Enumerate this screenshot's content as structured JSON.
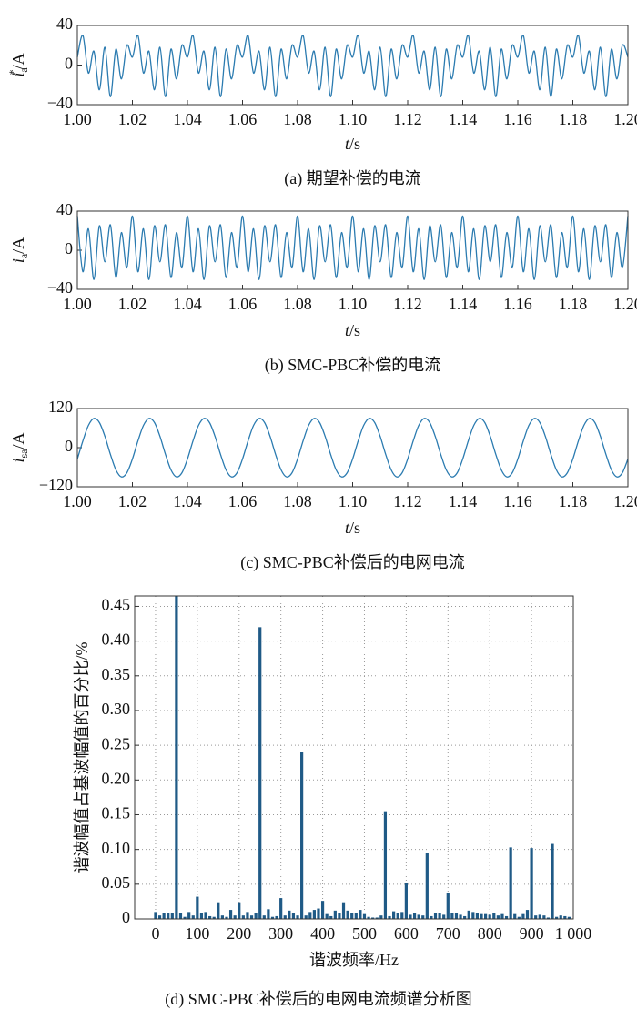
{
  "chart_data": [
    {
      "type": "line",
      "caption": "(a) 期望补偿的电流",
      "ylabel": {
        "symbol": "i",
        "sub": "a",
        "sup": "*",
        "unit": "/A"
      },
      "xlabel": {
        "symbol": "t",
        "unit": "/s"
      },
      "color": "#2b7bb0",
      "xlim": [
        1,
        1.2
      ],
      "ylim": [
        -40,
        40
      ],
      "xticks": [
        {
          "value": 1,
          "label": "1.00"
        },
        1.02,
        1.04,
        1.06,
        1.08,
        {
          "value": 1.1,
          "label": "1.10"
        },
        1.12,
        1.14,
        1.16,
        1.18,
        {
          "value": 1.2,
          "label": "1.20"
        }
      ],
      "yticks": [
        {
          "value": -40,
          "label": "−40"
        },
        0,
        40
      ],
      "x": [
        1,
        1.002,
        1.004,
        1.006,
        1.008,
        1.01,
        1.012,
        1.014,
        1.016,
        1.018,
        1.02,
        1.022,
        1.024,
        1.026,
        1.028,
        1.03,
        1.032,
        1.034,
        1.036,
        1.038,
        1.04,
        1.042,
        1.044,
        1.046,
        1.048,
        1.05,
        1.052,
        1.054,
        1.056,
        1.058,
        1.06,
        1.062,
        1.064,
        1.066,
        1.068,
        1.07,
        1.072,
        1.074,
        1.076,
        1.078,
        1.08,
        1.082,
        1.084,
        1.086,
        1.088,
        1.09,
        1.092,
        1.094,
        1.096,
        1.098,
        1.1,
        1.102,
        1.104,
        1.106,
        1.108,
        1.11,
        1.112,
        1.114,
        1.116,
        1.118,
        1.12,
        1.122,
        1.124,
        1.126,
        1.128,
        1.13,
        1.132,
        1.134,
        1.136,
        1.138,
        1.14,
        1.142,
        1.144,
        1.146,
        1.148,
        1.15,
        1.152,
        1.154,
        1.156,
        1.158,
        1.16,
        1.162,
        1.164,
        1.166,
        1.168,
        1.17,
        1.172,
        1.174,
        1.176,
        1.178,
        1.18,
        1.182,
        1.184,
        1.186,
        1.188,
        1.19,
        1.192,
        1.194,
        1.196,
        1.198,
        1.2
      ],
      "values": [
        8,
        30,
        -8,
        14,
        -25,
        18,
        -32,
        16,
        -14,
        20,
        8,
        30,
        -8,
        14,
        -25,
        18,
        -32,
        16,
        -14,
        20,
        8,
        30,
        -8,
        14,
        -25,
        18,
        -32,
        16,
        -14,
        20,
        8,
        30,
        -8,
        14,
        -25,
        18,
        -32,
        16,
        -14,
        20,
        8,
        30,
        -8,
        14,
        -25,
        18,
        -32,
        16,
        -14,
        20,
        8,
        30,
        -8,
        14,
        -25,
        18,
        -32,
        16,
        -14,
        20,
        8,
        30,
        -8,
        14,
        -25,
        18,
        -32,
        16,
        -14,
        20,
        8,
        30,
        -8,
        14,
        -25,
        18,
        -32,
        16,
        -14,
        20,
        8,
        30,
        -8,
        14,
        -25,
        18,
        -32,
        16,
        -14,
        20,
        8,
        30,
        -8,
        14,
        -25,
        18,
        -32,
        16,
        -14,
        20,
        8
      ]
    },
    {
      "type": "line",
      "caption": "(b) SMC-PBC补偿的电流",
      "ylabel": {
        "symbol": "i",
        "sub": "a",
        "unit": "/A"
      },
      "xlabel": {
        "symbol": "t",
        "unit": "/s"
      },
      "color": "#2b7bb0",
      "xlim": [
        1,
        1.2
      ],
      "ylim": [
        -40,
        40
      ],
      "xticks": [
        {
          "value": 1,
          "label": "1.00"
        },
        1.02,
        1.04,
        1.06,
        1.08,
        {
          "value": 1.1,
          "label": "1.10"
        },
        1.12,
        1.14,
        1.16,
        1.18,
        {
          "value": 1.2,
          "label": "1.20"
        }
      ],
      "yticks": [
        {
          "value": -40,
          "label": "−40"
        },
        0,
        40
      ],
      "x": [
        1,
        1.002,
        1.004,
        1.006,
        1.008,
        1.01,
        1.012,
        1.014,
        1.016,
        1.018,
        1.02,
        1.022,
        1.024,
        1.026,
        1.028,
        1.03,
        1.032,
        1.034,
        1.036,
        1.038,
        1.04,
        1.042,
        1.044,
        1.046,
        1.048,
        1.05,
        1.052,
        1.054,
        1.056,
        1.058,
        1.06,
        1.062,
        1.064,
        1.066,
        1.068,
        1.07,
        1.072,
        1.074,
        1.076,
        1.078,
        1.08,
        1.082,
        1.084,
        1.086,
        1.088,
        1.09,
        1.092,
        1.094,
        1.096,
        1.098,
        1.1,
        1.102,
        1.104,
        1.106,
        1.108,
        1.11,
        1.112,
        1.114,
        1.116,
        1.118,
        1.12,
        1.122,
        1.124,
        1.126,
        1.128,
        1.13,
        1.132,
        1.134,
        1.136,
        1.138,
        1.14,
        1.142,
        1.144,
        1.146,
        1.148,
        1.15,
        1.152,
        1.154,
        1.156,
        1.158,
        1.16,
        1.162,
        1.164,
        1.166,
        1.168,
        1.17,
        1.172,
        1.174,
        1.176,
        1.178,
        1.18,
        1.182,
        1.184,
        1.186,
        1.188,
        1.19,
        1.192,
        1.194,
        1.196,
        1.198,
        1.2
      ],
      "values": [
        35,
        -22,
        22,
        -30,
        25,
        -12,
        26,
        -28,
        18,
        -18,
        35,
        -22,
        22,
        -30,
        25,
        -12,
        26,
        -28,
        18,
        -18,
        35,
        -22,
        22,
        -30,
        25,
        -12,
        26,
        -28,
        18,
        -18,
        35,
        -22,
        22,
        -30,
        25,
        -12,
        26,
        -28,
        18,
        -18,
        35,
        -22,
        22,
        -30,
        25,
        -12,
        26,
        -28,
        18,
        -18,
        35,
        -22,
        22,
        -30,
        25,
        -12,
        26,
        -28,
        18,
        -18,
        35,
        -22,
        22,
        -30,
        25,
        -12,
        26,
        -28,
        18,
        -18,
        35,
        -22,
        22,
        -30,
        25,
        -12,
        26,
        -28,
        18,
        -18,
        35,
        -22,
        22,
        -30,
        25,
        -12,
        26,
        -28,
        18,
        -18,
        35,
        -22,
        22,
        -30,
        25,
        -12,
        26,
        -28,
        18,
        -18,
        35
      ]
    },
    {
      "type": "line",
      "caption": "(c) SMC-PBC补偿后的电网电流",
      "ylabel": {
        "symbol": "i",
        "sub": "sa",
        "unit": "/A"
      },
      "xlabel": {
        "symbol": "t",
        "unit": "/s"
      },
      "color": "#2b7bb0",
      "xlim": [
        1,
        1.2
      ],
      "ylim": [
        -120,
        120
      ],
      "xticks": [
        {
          "value": 1,
          "label": "1.00"
        },
        1.02,
        1.04,
        1.06,
        1.08,
        {
          "value": 1.1,
          "label": "1.10"
        },
        1.12,
        1.14,
        1.16,
        1.18,
        {
          "value": 1.2,
          "label": "1.20"
        }
      ],
      "yticks": [
        {
          "value": -120,
          "label": "−120"
        },
        0,
        120
      ],
      "x": [
        1,
        1.002,
        1.004,
        1.006,
        1.008,
        1.01,
        1.012,
        1.014,
        1.016,
        1.018,
        1.02,
        1.022,
        1.024,
        1.026,
        1.028,
        1.03,
        1.032,
        1.034,
        1.036,
        1.038,
        1.04,
        1.042,
        1.044,
        1.046,
        1.048,
        1.05,
        1.052,
        1.054,
        1.056,
        1.058,
        1.06,
        1.062,
        1.064,
        1.066,
        1.068,
        1.07,
        1.072,
        1.074,
        1.076,
        1.078,
        1.08,
        1.082,
        1.084,
        1.086,
        1.088,
        1.09,
        1.092,
        1.094,
        1.096,
        1.098,
        1.1,
        1.102,
        1.104,
        1.106,
        1.108,
        1.11,
        1.112,
        1.114,
        1.116,
        1.118,
        1.12,
        1.122,
        1.124,
        1.126,
        1.128,
        1.13,
        1.132,
        1.134,
        1.136,
        1.138,
        1.14,
        1.142,
        1.144,
        1.146,
        1.148,
        1.15,
        1.152,
        1.154,
        1.156,
        1.158,
        1.16,
        1.162,
        1.164,
        1.166,
        1.168,
        1.17,
        1.172,
        1.174,
        1.176,
        1.178,
        1.18,
        1.182,
        1.184,
        1.186,
        1.188,
        1.19,
        1.192,
        1.194,
        1.196,
        1.198,
        1.2
      ],
      "values": [
        -35,
        20.4,
        68,
        89.7,
        77.1,
        35,
        -20.4,
        -68,
        -89.7,
        -77.1,
        -35,
        20.4,
        68,
        89.7,
        77.1,
        35,
        -20.4,
        -68,
        -89.7,
        -77.1,
        -35,
        20.4,
        68,
        89.7,
        77.1,
        35,
        -20.4,
        -68,
        -89.7,
        -77.1,
        -35,
        20.4,
        68,
        89.7,
        77.1,
        35,
        -20.4,
        -68,
        -89.7,
        -77.1,
        -35,
        20.4,
        68,
        89.7,
        77.1,
        35,
        -20.4,
        -68,
        -89.7,
        -77.1,
        -35,
        20.4,
        68,
        89.7,
        77.1,
        35,
        -20.4,
        -68,
        -89.7,
        -77.1,
        -35,
        20.4,
        68,
        89.7,
        77.1,
        35,
        -20.4,
        -68,
        -89.7,
        -77.1,
        -35,
        20.4,
        68,
        89.7,
        77.1,
        35,
        -20.4,
        -68,
        -89.7,
        -77.1,
        -35,
        20.4,
        68,
        89.7,
        77.1,
        35,
        -20.4,
        -68,
        -89.7,
        -77.1,
        -35,
        20.4,
        68,
        89.7,
        77.1,
        35,
        -20.4,
        -68,
        -89.7,
        -77.1,
        -35
      ]
    },
    {
      "type": "bar",
      "caption": "(d) SMC-PBC补偿后的电网电流频谱分析图",
      "ylabel": "谐波幅值占基波幅值的百分比/%",
      "xlabel": "谐波频率/Hz",
      "color": "#1f5a86",
      "grid": true,
      "xlim": [
        -50,
        1000
      ],
      "ylim": [
        0,
        0.465
      ],
      "xticks": [
        0,
        100,
        200,
        300,
        400,
        500,
        600,
        700,
        800,
        900,
        {
          "value": 1000,
          "label": "1 000"
        }
      ],
      "yticks": [
        0,
        0.05,
        {
          "value": 0.1,
          "label": "0.10"
        },
        0.15,
        {
          "value": 0.2,
          "label": "0.20"
        },
        0.25,
        {
          "value": 0.3,
          "label": "0.30"
        },
        0.35,
        {
          "value": 0.4,
          "label": "0.40"
        },
        0.45
      ],
      "x": [
        0,
        10,
        20,
        30,
        40,
        50,
        60,
        70,
        80,
        90,
        100,
        110,
        120,
        130,
        140,
        150,
        160,
        170,
        180,
        190,
        200,
        210,
        220,
        230,
        240,
        250,
        260,
        270,
        280,
        290,
        300,
        310,
        320,
        330,
        340,
        350,
        360,
        370,
        380,
        390,
        400,
        410,
        420,
        430,
        440,
        450,
        460,
        470,
        480,
        490,
        500,
        510,
        520,
        530,
        540,
        550,
        560,
        570,
        580,
        590,
        600,
        610,
        620,
        630,
        640,
        650,
        660,
        670,
        680,
        690,
        700,
        710,
        720,
        730,
        740,
        750,
        760,
        770,
        780,
        790,
        800,
        810,
        820,
        830,
        840,
        850,
        860,
        870,
        880,
        890,
        900,
        910,
        920,
        930,
        940,
        950,
        960,
        970,
        980,
        990
      ],
      "values": [
        0.01,
        0.005,
        0.008,
        0.008,
        0.008,
        0.465,
        0.008,
        0.003,
        0.01,
        0.005,
        0.032,
        0.008,
        0.01,
        0.004,
        0.003,
        0.024,
        0.005,
        0.003,
        0.013,
        0.005,
        0.024,
        0.005,
        0.01,
        0.005,
        0.008,
        0.42,
        0.005,
        0.014,
        0.003,
        0.004,
        0.03,
        0.005,
        0.012,
        0.008,
        0.005,
        0.24,
        0.005,
        0.01,
        0.013,
        0.015,
        0.026,
        0.007,
        0.004,
        0.012,
        0.009,
        0.024,
        0.012,
        0.009,
        0.009,
        0.013,
        0.007,
        0.003,
        0.002,
        0.002,
        0.005,
        0.155,
        0.004,
        0.011,
        0.009,
        0.01,
        0.052,
        0.006,
        0.008,
        0.006,
        0.005,
        0.095,
        0.004,
        0.008,
        0.008,
        0.006,
        0.038,
        0.009,
        0.008,
        0.006,
        0.004,
        0.012,
        0.01,
        0.008,
        0.007,
        0.007,
        0.006,
        0.008,
        0.005,
        0.007,
        0.004,
        0.103,
        0.007,
        0.003,
        0.007,
        0.013,
        0.102,
        0.005,
        0.006,
        0.005,
        0.002,
        0.108,
        0.003,
        0.005,
        0.004,
        0.003
      ]
    }
  ]
}
